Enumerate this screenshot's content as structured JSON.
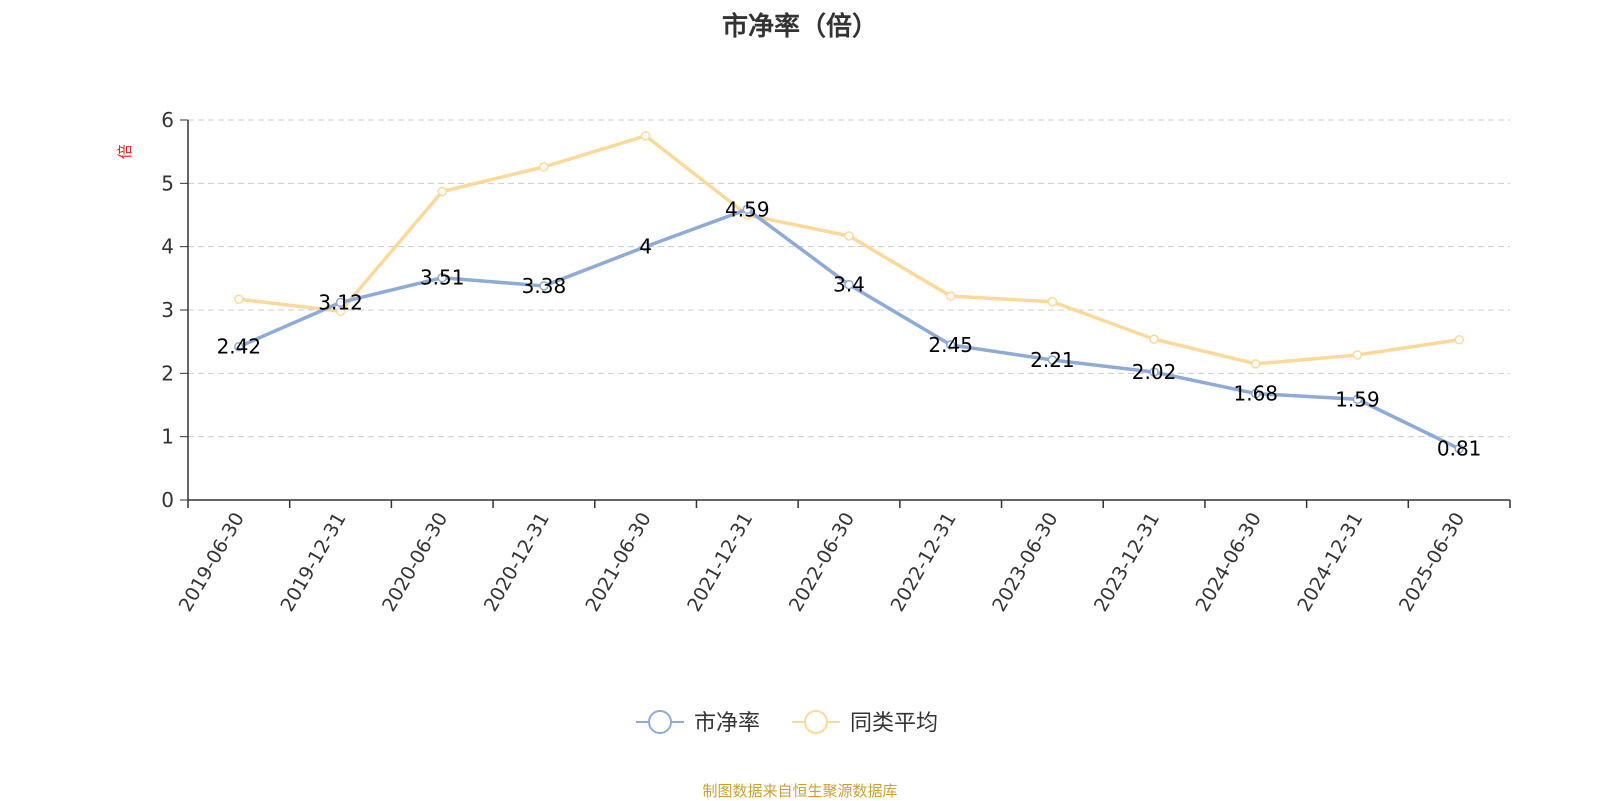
{
  "chart_data": {
    "type": "line",
    "title": "市净率（倍）",
    "ylabel": "倍",
    "xlabel": "",
    "categories": [
      "2019-06-30",
      "2019-12-31",
      "2020-06-30",
      "2020-12-31",
      "2021-06-30",
      "2021-12-31",
      "2022-06-30",
      "2022-12-31",
      "2023-06-30",
      "2023-12-31",
      "2024-06-30",
      "2024-12-31",
      "2025-06-30"
    ],
    "ylim": [
      0,
      6
    ],
    "yticks": [
      0,
      1,
      2,
      3,
      4,
      5,
      6
    ],
    "grid": true,
    "legend_position": "bottom",
    "series": [
      {
        "name": "市净率",
        "color": "#8eaad6",
        "show_labels": true,
        "values": [
          2.42,
          3.12,
          3.51,
          3.38,
          4,
          4.59,
          3.4,
          2.45,
          2.21,
          2.02,
          1.68,
          1.59,
          0.81
        ]
      },
      {
        "name": "同类平均",
        "color": "#fbd99a",
        "show_labels": false,
        "values": [
          3.17,
          2.98,
          4.87,
          5.26,
          5.75,
          4.5,
          4.17,
          3.22,
          3.13,
          2.54,
          2.15,
          2.29,
          2.53
        ]
      }
    ]
  },
  "source_note": "制图数据来自恒生聚源数据库",
  "colors": {
    "ylabel": "#e02020",
    "axis": "#333333",
    "grid": "#cccccc",
    "source": "#c9a233"
  }
}
